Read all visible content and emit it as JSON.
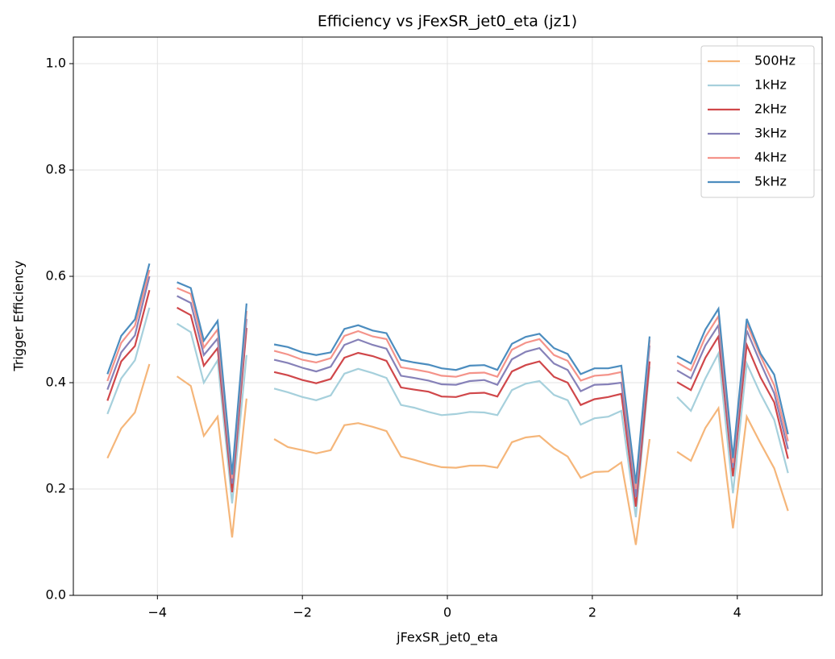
{
  "chart_data": {
    "type": "line",
    "title": "Efficiency vs jFexSR_jet0_eta (jz1)",
    "xlabel": "jFexSR_jet0_eta",
    "ylabel": "Trigger Efficiency",
    "x": [
      -4.69,
      -4.5,
      -4.31,
      -4.11,
      -3.92,
      -3.73,
      -3.54,
      -3.36,
      -3.17,
      -2.97,
      -2.77,
      -2.58,
      -2.39,
      -2.2,
      -2.0,
      -1.81,
      -1.61,
      -1.42,
      -1.23,
      -1.03,
      -0.84,
      -0.64,
      -0.46,
      -0.26,
      -0.08,
      0.12,
      0.31,
      0.51,
      0.69,
      0.89,
      1.08,
      1.27,
      1.47,
      1.66,
      1.84,
      2.03,
      2.22,
      2.4,
      2.6,
      2.79,
      2.98,
      3.17,
      3.36,
      3.56,
      3.74,
      3.94,
      4.13,
      4.32,
      4.51,
      4.7
    ],
    "series": [
      {
        "name": "500Hz",
        "color": "#f5b67a",
        "values": [
          0.258,
          0.314,
          0.344,
          0.435,
          null,
          0.412,
          0.394,
          0.3,
          0.336,
          0.109,
          0.37,
          null,
          0.294,
          0.279,
          0.273,
          0.267,
          0.273,
          0.32,
          0.324,
          0.317,
          0.309,
          0.261,
          0.255,
          0.247,
          0.241,
          0.24,
          0.244,
          0.244,
          0.24,
          0.288,
          0.297,
          0.3,
          0.277,
          0.261,
          0.221,
          0.232,
          0.233,
          0.25,
          0.095,
          0.294,
          null,
          0.27,
          0.253,
          0.315,
          0.352,
          0.126,
          0.336,
          0.286,
          0.239,
          0.159
        ]
      },
      {
        "name": "1kHz",
        "color": "#a6d0dc",
        "values": [
          0.341,
          0.408,
          0.442,
          0.541,
          null,
          0.511,
          0.495,
          0.4,
          0.442,
          0.173,
          0.452,
          null,
          0.389,
          0.382,
          0.373,
          0.367,
          0.376,
          0.417,
          0.426,
          0.418,
          0.409,
          0.358,
          0.353,
          0.345,
          0.339,
          0.341,
          0.345,
          0.344,
          0.339,
          0.386,
          0.398,
          0.403,
          0.377,
          0.367,
          0.321,
          0.333,
          0.336,
          0.347,
          0.147,
          0.43,
          null,
          0.373,
          0.347,
          0.408,
          0.455,
          0.192,
          0.436,
          0.379,
          0.33,
          0.23
        ]
      },
      {
        "name": "2kHz",
        "color": "#d0474a",
        "values": [
          0.366,
          0.44,
          0.469,
          0.574,
          null,
          0.541,
          0.527,
          0.432,
          0.465,
          0.194,
          0.503,
          null,
          0.42,
          0.414,
          0.405,
          0.399,
          0.407,
          0.447,
          0.456,
          0.45,
          0.441,
          0.391,
          0.387,
          0.383,
          0.374,
          0.373,
          0.38,
          0.381,
          0.374,
          0.421,
          0.433,
          0.44,
          0.411,
          0.4,
          0.358,
          0.369,
          0.373,
          0.379,
          0.167,
          0.44,
          null,
          0.401,
          0.386,
          0.447,
          0.487,
          0.224,
          0.471,
          0.41,
          0.363,
          0.257
        ]
      },
      {
        "name": "3kHz",
        "color": "#8681b8",
        "values": [
          0.387,
          0.457,
          0.489,
          0.6,
          null,
          0.563,
          0.55,
          0.452,
          0.483,
          0.21,
          0.52,
          null,
          0.443,
          0.437,
          0.428,
          0.421,
          0.43,
          0.471,
          0.481,
          0.471,
          0.464,
          0.413,
          0.409,
          0.404,
          0.397,
          0.396,
          0.403,
          0.405,
          0.396,
          0.444,
          0.458,
          0.465,
          0.436,
          0.424,
          0.384,
          0.396,
          0.397,
          0.4,
          0.185,
          0.47,
          null,
          0.423,
          0.408,
          0.47,
          0.508,
          0.24,
          0.498,
          0.437,
          0.38,
          0.275
        ]
      },
      {
        "name": "4kHz",
        "color": "#f4938a",
        "values": [
          0.403,
          0.475,
          0.507,
          0.612,
          null,
          0.578,
          0.567,
          0.466,
          0.5,
          0.22,
          0.535,
          null,
          0.46,
          0.453,
          0.443,
          0.438,
          0.446,
          0.488,
          0.497,
          0.487,
          0.482,
          0.429,
          0.425,
          0.42,
          0.413,
          0.411,
          0.418,
          0.419,
          0.411,
          0.462,
          0.475,
          0.482,
          0.452,
          0.441,
          0.404,
          0.413,
          0.415,
          0.42,
          0.2,
          0.48,
          null,
          0.438,
          0.423,
          0.486,
          0.525,
          0.249,
          0.511,
          0.45,
          0.395,
          0.29
        ]
      },
      {
        "name": "5kHz",
        "color": "#4c8dbf",
        "values": [
          0.416,
          0.488,
          0.519,
          0.624,
          null,
          0.589,
          0.578,
          0.479,
          0.516,
          0.227,
          0.549,
          null,
          0.472,
          0.467,
          0.457,
          0.452,
          0.457,
          0.501,
          0.508,
          0.498,
          0.493,
          0.443,
          0.438,
          0.434,
          0.427,
          0.424,
          0.432,
          0.433,
          0.424,
          0.473,
          0.486,
          0.492,
          0.465,
          0.454,
          0.416,
          0.427,
          0.427,
          0.432,
          0.21,
          0.487,
          null,
          0.45,
          0.436,
          0.5,
          0.539,
          0.258,
          0.52,
          0.455,
          0.415,
          0.303
        ]
      }
    ],
    "xlim": [
      -5.16,
      5.17
    ],
    "ylim": [
      0,
      1.05
    ],
    "xticks": [
      {
        "value": -4,
        "label": "−4"
      },
      {
        "value": -2,
        "label": "−2"
      },
      0,
      2,
      4
    ],
    "yticks": [
      {
        "value": 0,
        "label": "0.0"
      },
      0.2,
      0.4,
      0.6,
      0.8,
      {
        "value": 1,
        "label": "1.0"
      }
    ],
    "grid": true,
    "legend": "upper right"
  }
}
